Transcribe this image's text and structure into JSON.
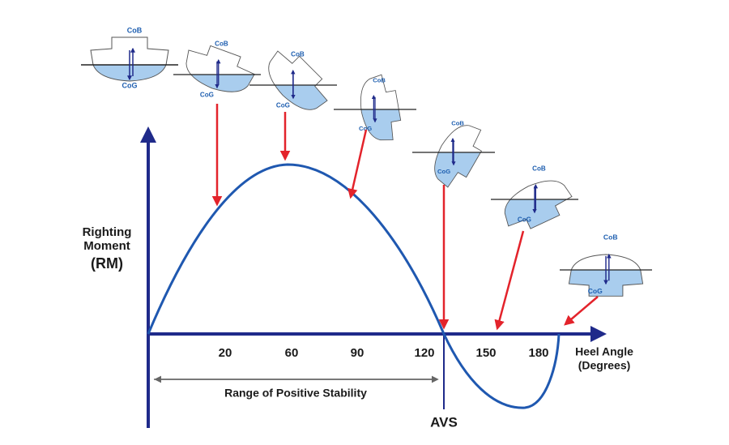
{
  "y_axis": {
    "label_lines": [
      "Righting",
      "Moment"
    ],
    "unit": "(RM)"
  },
  "x_axis": {
    "label_lines": [
      "Heel Angle",
      "(Degrees)"
    ],
    "ticks": [
      "20",
      "60",
      "90",
      "120",
      "150",
      "180"
    ]
  },
  "range_label": "Range of Positive Stability",
  "avs_label": "AVS",
  "hulls": [
    {
      "cob": "CoB",
      "cog": "CoG"
    },
    {
      "cob": "CoB",
      "cog": "CoG"
    },
    {
      "cob": "CoB",
      "cog": "CoG"
    },
    {
      "cob": "CoB",
      "cog": "CoG"
    },
    {
      "cob": "CoB",
      "cog": "CoG"
    },
    {
      "cob": "CoB",
      "cog": "CoG"
    },
    {
      "cob": "CoB",
      "cog": "CoG"
    }
  ]
}
